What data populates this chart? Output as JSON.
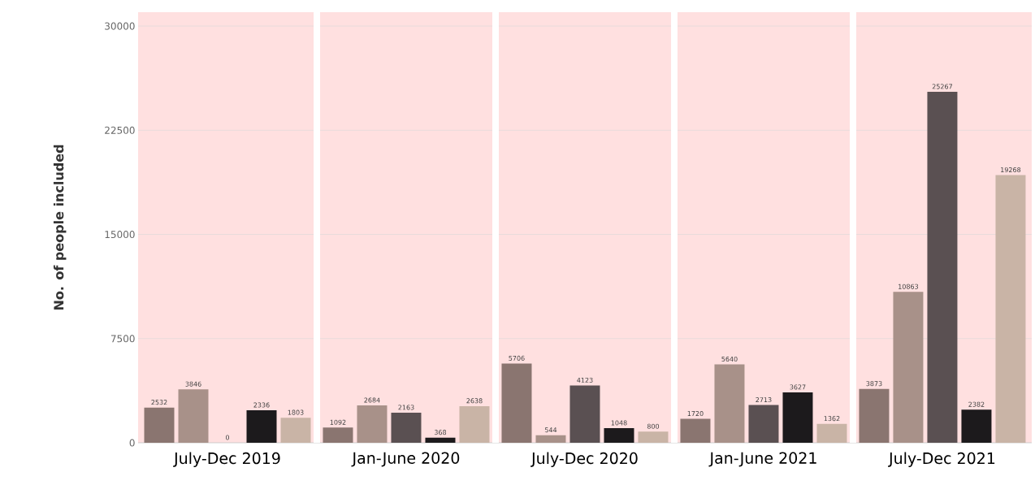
{
  "chart_data": {
    "type": "bar",
    "ylabel": "No. of people included",
    "categories": [
      "July-Dec 2019",
      "Jan-June 2020",
      "July-Dec 2020",
      "Jan-June 2021",
      "July-Dec 2021"
    ],
    "series": [
      {
        "color": "#8a7570",
        "values": [
          2532,
          1092,
          5706,
          1720,
          3873
        ]
      },
      {
        "color": "#a89189",
        "values": [
          3846,
          2684,
          544,
          5640,
          10863
        ]
      },
      {
        "color": "#5a5052",
        "values": [
          0,
          2163,
          4123,
          2713,
          25267
        ]
      },
      {
        "color": "#1c1a1c",
        "values": [
          2336,
          368,
          1048,
          3627,
          2382
        ]
      },
      {
        "color": "#c9b4a6",
        "values": [
          1803,
          2638,
          800,
          1362,
          19268
        ]
      }
    ],
    "ylim": [
      0,
      31000
    ],
    "yticks": [
      0,
      7500,
      15000,
      22500,
      30000
    ],
    "grid": "y",
    "data_labels": true
  }
}
